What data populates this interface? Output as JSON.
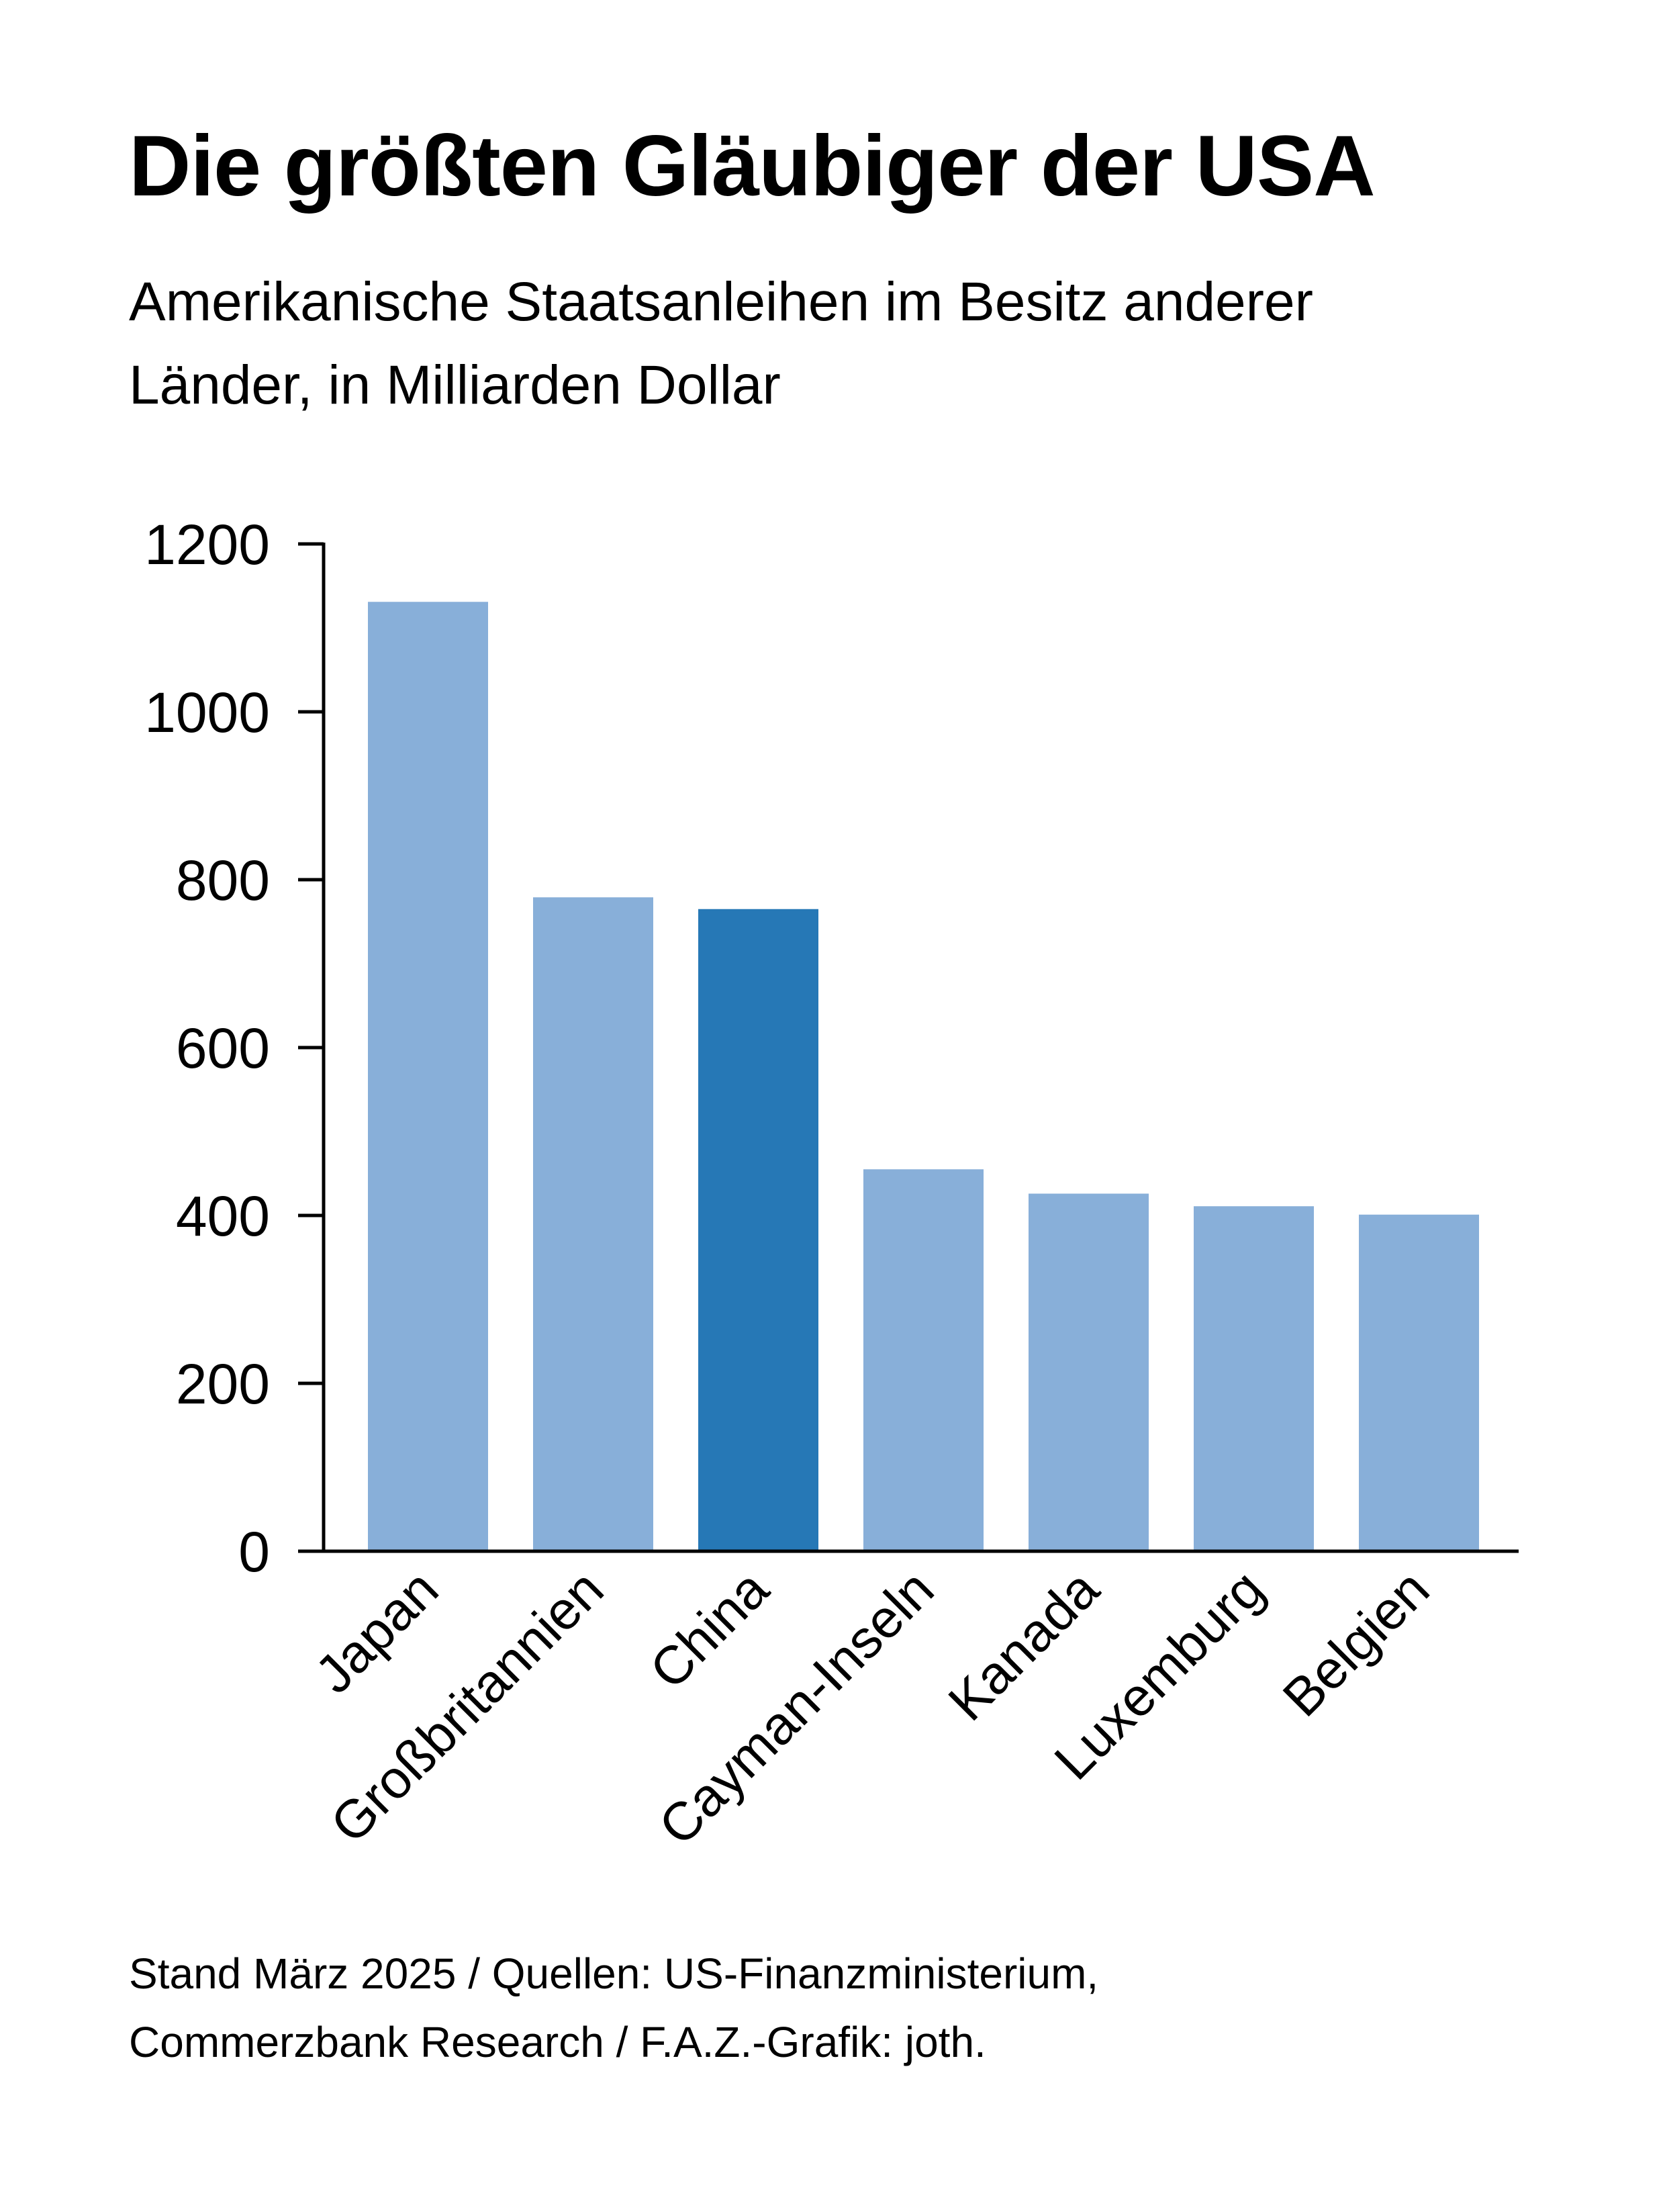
{
  "colors": {
    "bar": "#88afd9",
    "highlight": "#2678b6",
    "axis": "#000000"
  },
  "chart_data": {
    "type": "bar",
    "title": "Die größten Gläubiger der USA",
    "subtitle": "Amerikanische Staatsanleihen im Besitz anderer Länder, in Milliarden Dollar",
    "categories": [
      "Japan",
      "Großbritannien",
      "China",
      "Cayman-Inseln",
      "Kanada",
      "Luxemburg",
      "Belgien"
    ],
    "values": [
      1131,
      779,
      765,
      455,
      426,
      411,
      401
    ],
    "highlight": [
      "China"
    ],
    "ylim": [
      0,
      1200
    ],
    "yticks": [
      0,
      200,
      400,
      600,
      800,
      1000,
      1200
    ],
    "xlabel": "",
    "ylabel": "",
    "grid": false,
    "legend": "none"
  },
  "footer": {
    "line1": "Stand März 2025 / Quellen: US-Finanzministerium,",
    "line2": "Commerzbank Research / F.A.Z.-Grafik: joth."
  }
}
